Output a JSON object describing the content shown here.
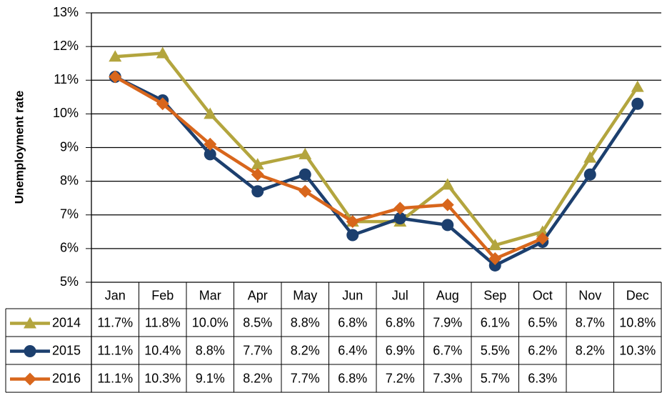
{
  "chart_data": {
    "type": "line",
    "y_label": "Unemployment rate",
    "categories": [
      "Jan",
      "Feb",
      "Mar",
      "Apr",
      "May",
      "Jun",
      "Jul",
      "Aug",
      "Sep",
      "Oct",
      "Nov",
      "Dec"
    ],
    "series": [
      {
        "name": "2014",
        "color": "#b3a53e",
        "marker": "triangle",
        "values": [
          11.7,
          11.8,
          10.0,
          8.5,
          8.8,
          6.8,
          6.8,
          7.9,
          6.1,
          6.5,
          8.7,
          10.8
        ],
        "value_labels": [
          "11.7%",
          "11.8%",
          "10.0%",
          "8.5%",
          "8.8%",
          "6.8%",
          "6.8%",
          "7.9%",
          "6.1%",
          "6.5%",
          "8.7%",
          "10.8%"
        ]
      },
      {
        "name": "2015",
        "color": "#1c3f6e",
        "marker": "circle",
        "values": [
          11.1,
          10.4,
          8.8,
          7.7,
          8.2,
          6.4,
          6.9,
          6.7,
          5.5,
          6.2,
          8.2,
          10.3
        ],
        "value_labels": [
          "11.1%",
          "10.4%",
          "8.8%",
          "7.7%",
          "8.2%",
          "6.4%",
          "6.9%",
          "6.7%",
          "5.5%",
          "6.2%",
          "8.2%",
          "10.3%"
        ]
      },
      {
        "name": "2016",
        "color": "#d8661c",
        "marker": "diamond",
        "values": [
          11.1,
          10.3,
          9.1,
          8.2,
          7.7,
          6.8,
          7.2,
          7.3,
          5.7,
          6.3,
          null,
          null
        ],
        "value_labels": [
          "11.1%",
          "10.3%",
          "9.1%",
          "8.2%",
          "7.7%",
          "6.8%",
          "7.2%",
          "7.3%",
          "5.7%",
          "6.3%",
          null,
          null
        ]
      }
    ],
    "ylim": [
      5,
      13
    ],
    "yticks": [
      {
        "value": 5,
        "label": "5%"
      },
      {
        "value": 6,
        "label": "6%"
      },
      {
        "value": 7,
        "label": "7%"
      },
      {
        "value": 8,
        "label": "8%"
      },
      {
        "value": 9,
        "label": "9%"
      },
      {
        "value": 10,
        "label": "10%"
      },
      {
        "value": 11,
        "label": "11%"
      },
      {
        "value": 12,
        "label": "12%"
      },
      {
        "value": 13,
        "label": "13%"
      }
    ],
    "grid": true
  }
}
